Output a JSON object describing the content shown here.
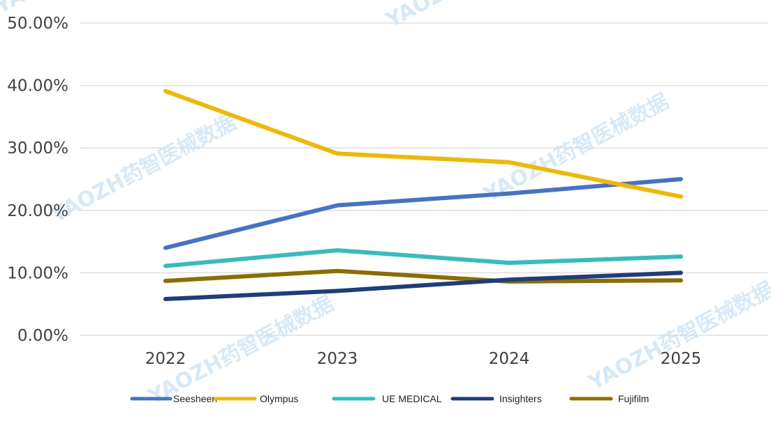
{
  "chart_data": {
    "type": "line",
    "title": "",
    "xlabel": "",
    "ylabel": "",
    "categories": [
      "2022",
      "2023",
      "2024",
      "2025"
    ],
    "ylim": [
      0,
      50
    ],
    "yticks": [
      0,
      10,
      20,
      30,
      40,
      50
    ],
    "ytick_labels": [
      "0.00%",
      "10.00%",
      "20.00%",
      "30.00%",
      "40.00%",
      "50.00%"
    ],
    "grid": true,
    "legend_position": "bottom",
    "series": [
      {
        "name": "Seesheen",
        "color": "#4472c4",
        "values": [
          14.0,
          20.8,
          22.7,
          25.0
        ]
      },
      {
        "name": "Olympus",
        "color": "#f0b800",
        "values": [
          39.1,
          29.1,
          27.7,
          22.2
        ]
      },
      {
        "name": "UE MEDICAL",
        "color": "#33bdbd",
        "values": [
          11.1,
          13.6,
          11.6,
          12.6
        ]
      },
      {
        "name": "Insighters",
        "color": "#1f3d7a",
        "values": [
          5.8,
          7.1,
          8.9,
          10.0
        ]
      },
      {
        "name": "Fujifilm",
        "color": "#8c6d00",
        "values": [
          8.7,
          10.3,
          8.6,
          8.8
        ]
      }
    ]
  },
  "watermark": {
    "text": "YAOZH药智医械数据"
  }
}
